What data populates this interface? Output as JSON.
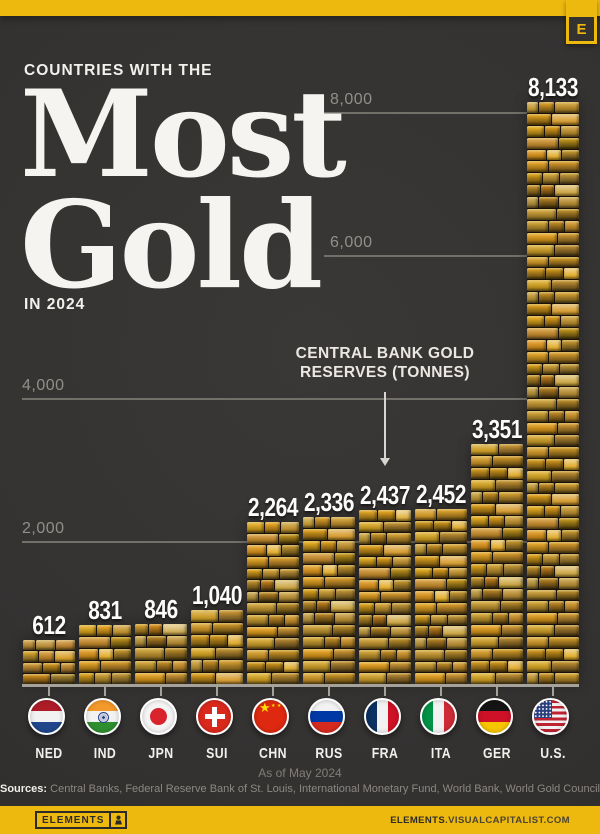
{
  "brand": {
    "corner_letter": "E"
  },
  "header": {
    "kicker": "COUNTRIES WITH THE",
    "title_line1": "Most",
    "title_line2": "Gold",
    "subtitle": "IN 2024"
  },
  "chart_data": {
    "type": "bar",
    "title": "Countries with the Most Gold in 2024",
    "xlabel": "",
    "ylabel": "Central bank gold reserves (tonnes)",
    "categories": [
      "NED",
      "IND",
      "JPN",
      "SUI",
      "CHN",
      "RUS",
      "FRA",
      "ITA",
      "GER",
      "U.S."
    ],
    "series": [
      {
        "name": "Central bank gold reserves (tonnes)",
        "values": [
          612,
          831,
          846,
          1040,
          2264,
          2336,
          2437,
          2452,
          3351,
          8133
        ],
        "value_labels": [
          "612",
          "831",
          "846",
          "1,040",
          "2,264",
          "2,336",
          "2,437",
          "2,452",
          "3,351",
          "8,133"
        ]
      }
    ],
    "countries": [
      {
        "code": "NED",
        "flag_icon": "netherlands-flag-icon"
      },
      {
        "code": "IND",
        "flag_icon": "india-flag-icon"
      },
      {
        "code": "JPN",
        "flag_icon": "japan-flag-icon"
      },
      {
        "code": "SUI",
        "flag_icon": "switzerland-flag-icon"
      },
      {
        "code": "CHN",
        "flag_icon": "china-flag-icon"
      },
      {
        "code": "RUS",
        "flag_icon": "russia-flag-icon"
      },
      {
        "code": "FRA",
        "flag_icon": "france-flag-icon"
      },
      {
        "code": "ITA",
        "flag_icon": "italy-flag-icon"
      },
      {
        "code": "GER",
        "flag_icon": "germany-flag-icon"
      },
      {
        "code": "U.S.",
        "flag_icon": "usa-flag-icon"
      }
    ],
    "annotation": {
      "line1": "CENTRAL BANK GOLD",
      "line2": "RESERVES (TONNES)",
      "points_to_category": "FRA"
    },
    "y_axis": {
      "gridline_values": [
        2000,
        4000,
        6000,
        8000
      ],
      "gridline_labels": [
        "2,000",
        "4,000",
        "6,000",
        "8,000"
      ],
      "ylim": [
        0,
        8600
      ]
    },
    "grid": "horizontal",
    "legend": "none"
  },
  "footnotes": {
    "as_of": "As of May 2024",
    "sources_label": "Sources:",
    "sources_text": " Central Banks, Federal Reserve Bank of St. Louis, International Monetary Fund, World Bank, World Gold Council"
  },
  "footer": {
    "logo_text": "ELEMENTS",
    "site_bold": "ELEMENTS",
    "site_rest": ".VISUALCAPITALIST.COM"
  },
  "colors": {
    "accent_yellow": "#EEB90F",
    "background": "#343231",
    "gold_base": "#8a6423",
    "grid_gray": "#737069",
    "label_gray": "#918F8A",
    "text_white": "#F6F4F0"
  }
}
